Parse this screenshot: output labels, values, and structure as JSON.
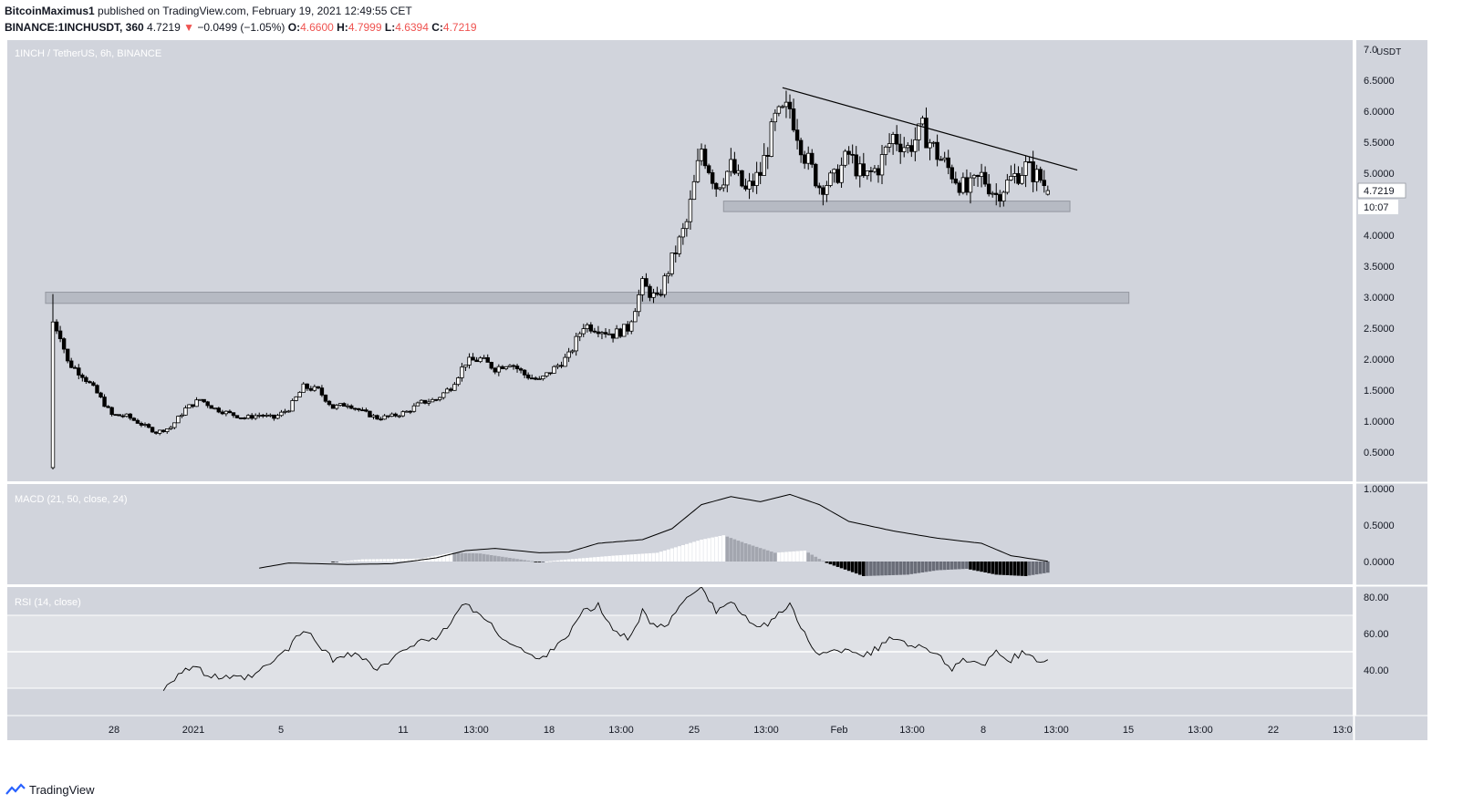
{
  "header": {
    "author": "BitcoinMaximus1",
    "published": "published on TradingView.com, February 19, 2021 12:49:55 CET",
    "symbol": "BINANCE:1INCHUSDT, 360",
    "last": "4.7219",
    "change": "−0.0499 (−1.05%)",
    "o_label": "O:",
    "o_value": "4.6600",
    "h_label": "H:",
    "h_value": "4.7999",
    "l_label": "L:",
    "l_value": "4.6394",
    "c_label": "C:",
    "c_value": "4.7219"
  },
  "footer": {
    "brand": "TradingView"
  },
  "colors": {
    "pane_bg": "#d1d4dc",
    "up": "#ffffff",
    "down": "#000000",
    "zone": "#b2b5be",
    "rsi_band": "#dfe1e6"
  },
  "chart_data": [
    {
      "type": "candlestick",
      "title": "1INCH / TetherUS, 6h, BINANCE",
      "y_unit": "USDT",
      "ylim": [
        0,
        7.0
      ],
      "y_ticks": [
        "7.0",
        "6.5000",
        "6.0000",
        "5.5000",
        "5.0000",
        "4.5000",
        "4.0000",
        "3.5000",
        "3.0000",
        "2.5000",
        "2.0000",
        "1.5000",
        "1.0000",
        "0.5000"
      ],
      "x_ticks": [
        "28",
        "2021",
        "5",
        "11",
        "13:00",
        "18",
        "13:00",
        "25",
        "13:00",
        "Feb",
        "13:00",
        "8",
        "13:00",
        "15",
        "13:00",
        "22",
        "13:0"
      ],
      "last_price_label": "4.7219",
      "countdown_label": "10:07",
      "anchors": [
        {
          "day": 0,
          "v": 2.6
        },
        {
          "day": 0.5,
          "v": 2.4
        },
        {
          "day": 1,
          "v": 1.95
        },
        {
          "day": 2,
          "v": 1.75
        },
        {
          "day": 3,
          "v": 1.45
        },
        {
          "day": 4,
          "v": 1.1
        },
        {
          "day": 5,
          "v": 1.08
        },
        {
          "day": 6,
          "v": 0.95
        },
        {
          "day": 7,
          "v": 0.82
        },
        {
          "day": 8,
          "v": 0.9
        },
        {
          "day": 9,
          "v": 1.2
        },
        {
          "day": 10,
          "v": 1.35
        },
        {
          "day": 11,
          "v": 1.2
        },
        {
          "day": 12,
          "v": 1.12
        },
        {
          "day": 13,
          "v": 1.05
        },
        {
          "day": 14,
          "v": 1.1
        },
        {
          "day": 15,
          "v": 1.05
        },
        {
          "day": 16,
          "v": 1.2
        },
        {
          "day": 17,
          "v": 1.55
        },
        {
          "day": 18,
          "v": 1.5
        },
        {
          "day": 19,
          "v": 1.22
        },
        {
          "day": 20,
          "v": 1.28
        },
        {
          "day": 21,
          "v": 1.15
        },
        {
          "day": 22,
          "v": 1.05
        },
        {
          "day": 23,
          "v": 1.08
        },
        {
          "day": 24,
          "v": 1.15
        },
        {
          "day": 25,
          "v": 1.3
        },
        {
          "day": 26,
          "v": 1.35
        },
        {
          "day": 27,
          "v": 1.55
        },
        {
          "day": 28,
          "v": 1.95
        },
        {
          "day": 29,
          "v": 2.0
        },
        {
          "day": 30,
          "v": 1.85
        },
        {
          "day": 31,
          "v": 1.95
        },
        {
          "day": 32,
          "v": 1.75
        },
        {
          "day": 33,
          "v": 1.65
        },
        {
          "day": 34,
          "v": 1.85
        },
        {
          "day": 35,
          "v": 2.05
        },
        {
          "day": 36,
          "v": 2.55
        },
        {
          "day": 37,
          "v": 2.5
        },
        {
          "day": 38,
          "v": 2.4
        },
        {
          "day": 39,
          "v": 2.5
        },
        {
          "day": 40,
          "v": 3.2
        },
        {
          "day": 41,
          "v": 2.95
        },
        {
          "day": 42,
          "v": 3.6
        },
        {
          "day": 43,
          "v": 4.2
        },
        {
          "day": 44,
          "v": 5.4
        },
        {
          "day": 45,
          "v": 4.8
        },
        {
          "day": 46,
          "v": 5.1
        },
        {
          "day": 47,
          "v": 4.7
        },
        {
          "day": 48,
          "v": 5.0
        },
        {
          "day": 49,
          "v": 5.85
        },
        {
          "day": 50,
          "v": 6.05
        },
        {
          "day": 51,
          "v": 5.3
        },
        {
          "day": 52,
          "v": 4.8
        },
        {
          "day": 53,
          "v": 4.9
        },
        {
          "day": 54,
          "v": 5.3
        },
        {
          "day": 55,
          "v": 4.9
        },
        {
          "day": 56,
          "v": 5.1
        },
        {
          "day": 57,
          "v": 5.6
        },
        {
          "day": 58,
          "v": 5.4
        },
        {
          "day": 59,
          "v": 5.7
        },
        {
          "day": 60,
          "v": 5.3
        },
        {
          "day": 61,
          "v": 5.0
        },
        {
          "day": 62,
          "v": 4.7
        },
        {
          "day": 63,
          "v": 4.95
        },
        {
          "day": 64,
          "v": 4.65
        },
        {
          "day": 65,
          "v": 4.9
        },
        {
          "day": 66,
          "v": 5.1
        },
        {
          "day": 67,
          "v": 4.9
        },
        {
          "day": 67.6,
          "v": 4.72
        }
      ],
      "resistance_line": {
        "start": {
          "day": 49.5,
          "price": 6.38
        },
        "end": {
          "day": 69.5,
          "price": 5.05
        }
      },
      "zones": [
        {
          "from_day": -0.5,
          "to_day": 73,
          "low": 2.9,
          "high": 3.08
        },
        {
          "from_day": 45.5,
          "to_day": 69,
          "low": 4.38,
          "high": 4.55
        }
      ]
    },
    {
      "type": "line+histogram",
      "title": "MACD (21, 50, close, 24)",
      "y_ticks": [
        "1.0000",
        "0.5000",
        "0.0000"
      ],
      "ylim": [
        -0.25,
        1.05
      ],
      "macd_anchors": [
        {
          "day": 14,
          "v": -0.09
        },
        {
          "day": 16,
          "v": -0.02
        },
        {
          "day": 20,
          "v": -0.04
        },
        {
          "day": 23,
          "v": -0.03
        },
        {
          "day": 26,
          "v": 0.05
        },
        {
          "day": 28,
          "v": 0.15
        },
        {
          "day": 30,
          "v": 0.18
        },
        {
          "day": 33,
          "v": 0.12
        },
        {
          "day": 35,
          "v": 0.13
        },
        {
          "day": 37,
          "v": 0.25
        },
        {
          "day": 40,
          "v": 0.3
        },
        {
          "day": 42,
          "v": 0.45
        },
        {
          "day": 44,
          "v": 0.78
        },
        {
          "day": 46,
          "v": 0.89
        },
        {
          "day": 48,
          "v": 0.82
        },
        {
          "day": 50,
          "v": 0.92
        },
        {
          "day": 52,
          "v": 0.78
        },
        {
          "day": 54,
          "v": 0.55
        },
        {
          "day": 57,
          "v": 0.42
        },
        {
          "day": 60,
          "v": 0.32
        },
        {
          "day": 63,
          "v": 0.25
        },
        {
          "day": 65,
          "v": 0.08
        },
        {
          "day": 67.6,
          "v": 0.0
        }
      ],
      "hist_anchors": [
        {
          "day": 19,
          "v": -0.01
        },
        {
          "day": 21,
          "v": 0.03
        },
        {
          "day": 25,
          "v": 0.04
        },
        {
          "day": 27,
          "v": 0.12
        },
        {
          "day": 29,
          "v": 0.11
        },
        {
          "day": 31,
          "v": 0.05
        },
        {
          "day": 33,
          "v": -0.01
        },
        {
          "day": 35,
          "v": 0.03
        },
        {
          "day": 38,
          "v": 0.08
        },
        {
          "day": 41,
          "v": 0.12
        },
        {
          "day": 44,
          "v": 0.3
        },
        {
          "day": 45.5,
          "v": 0.36
        },
        {
          "day": 47,
          "v": 0.25
        },
        {
          "day": 49,
          "v": 0.12
        },
        {
          "day": 51,
          "v": 0.15
        },
        {
          "day": 52.5,
          "v": -0.02
        },
        {
          "day": 55,
          "v": -0.2
        },
        {
          "day": 58,
          "v": -0.18
        },
        {
          "day": 60,
          "v": -0.12
        },
        {
          "day": 62,
          "v": -0.1
        },
        {
          "day": 64,
          "v": -0.18
        },
        {
          "day": 66,
          "v": -0.2
        },
        {
          "day": 67.6,
          "v": -0.15
        }
      ]
    },
    {
      "type": "line",
      "title": "RSI (14, close)",
      "y_ticks": [
        "80.00",
        "60.00",
        "40.00"
      ],
      "ylim": [
        22,
        88
      ],
      "band": [
        30,
        70
      ],
      "midline": 50,
      "rsi_anchors": [
        {
          "day": 7.5,
          "v": 30
        },
        {
          "day": 8.5,
          "v": 38
        },
        {
          "day": 9.5,
          "v": 42
        },
        {
          "day": 10.5,
          "v": 37
        },
        {
          "day": 12,
          "v": 35
        },
        {
          "day": 13.5,
          "v": 36
        },
        {
          "day": 15,
          "v": 45
        },
        {
          "day": 16,
          "v": 52
        },
        {
          "day": 17,
          "v": 62
        },
        {
          "day": 18,
          "v": 55
        },
        {
          "day": 19,
          "v": 45
        },
        {
          "day": 20,
          "v": 50
        },
        {
          "day": 21,
          "v": 47
        },
        {
          "day": 22,
          "v": 40
        },
        {
          "day": 23,
          "v": 45
        },
        {
          "day": 24,
          "v": 52
        },
        {
          "day": 25,
          "v": 58
        },
        {
          "day": 26,
          "v": 55
        },
        {
          "day": 27,
          "v": 67
        },
        {
          "day": 28,
          "v": 77
        },
        {
          "day": 29,
          "v": 70
        },
        {
          "day": 30,
          "v": 62
        },
        {
          "day": 31,
          "v": 55
        },
        {
          "day": 32,
          "v": 50
        },
        {
          "day": 33,
          "v": 45
        },
        {
          "day": 34,
          "v": 53
        },
        {
          "day": 35,
          "v": 60
        },
        {
          "day": 36,
          "v": 72
        },
        {
          "day": 37,
          "v": 75
        },
        {
          "day": 38,
          "v": 62
        },
        {
          "day": 39,
          "v": 57
        },
        {
          "day": 40,
          "v": 72
        },
        {
          "day": 41,
          "v": 62
        },
        {
          "day": 42,
          "v": 68
        },
        {
          "day": 43,
          "v": 80
        },
        {
          "day": 44,
          "v": 87
        },
        {
          "day": 45,
          "v": 72
        },
        {
          "day": 46,
          "v": 78
        },
        {
          "day": 47,
          "v": 68
        },
        {
          "day": 48,
          "v": 62
        },
        {
          "day": 49,
          "v": 70
        },
        {
          "day": 50,
          "v": 75
        },
        {
          "day": 51,
          "v": 60
        },
        {
          "day": 52,
          "v": 48
        },
        {
          "day": 53,
          "v": 50
        },
        {
          "day": 54,
          "v": 52
        },
        {
          "day": 55,
          "v": 48
        },
        {
          "day": 56,
          "v": 52
        },
        {
          "day": 57,
          "v": 58
        },
        {
          "day": 58,
          "v": 55
        },
        {
          "day": 59,
          "v": 52
        },
        {
          "day": 60,
          "v": 50
        },
        {
          "day": 61,
          "v": 40
        },
        {
          "day": 62,
          "v": 46
        },
        {
          "day": 63,
          "v": 41
        },
        {
          "day": 64,
          "v": 49
        },
        {
          "day": 65,
          "v": 46
        },
        {
          "day": 66,
          "v": 50
        },
        {
          "day": 67,
          "v": 44
        },
        {
          "day": 67.6,
          "v": 45
        }
      ]
    }
  ]
}
